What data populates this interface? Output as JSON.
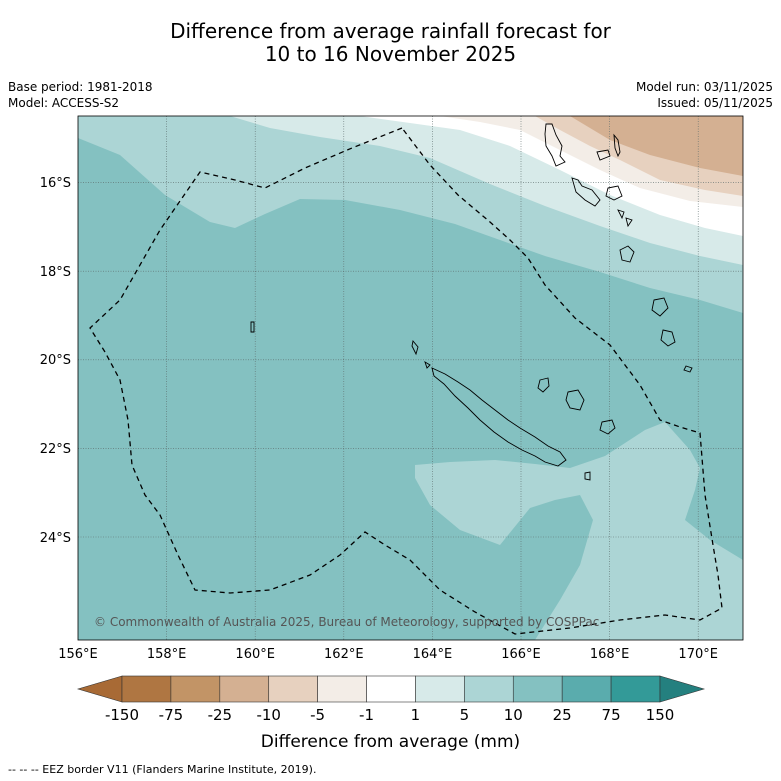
{
  "title": {
    "line1": "Difference from average rainfall forecast for",
    "line2": "10 to 16 November 2025"
  },
  "meta_left": {
    "base_period": "Base period: 1981-2018",
    "model": "Model: ACCESS-S2"
  },
  "meta_right": {
    "model_run": "Model run: 03/11/2025",
    "issued": "Issued: 05/11/2025"
  },
  "map": {
    "lat_labels": [
      "16°S",
      "18°S",
      "20°S",
      "22°S",
      "24°S"
    ],
    "lon_labels": [
      "156°E",
      "158°E",
      "160°E",
      "162°E",
      "164°E",
      "166°E",
      "168°E",
      "170°E"
    ],
    "copyright": "© Commonwealth of Australia 2025, Bureau of Meteorology, supported by COSPPac"
  },
  "colorbar": {
    "tick_labels": [
      "-150",
      "-75",
      "-25",
      "-10",
      "-5",
      "-1",
      "1",
      "5",
      "10",
      "25",
      "75",
      "150"
    ],
    "colors": [
      "#a86a35",
      "#af7642",
      "#c29466",
      "#d4b092",
      "#e7d1bf",
      "#f3ede7",
      "#ffffff",
      "#d7eae9",
      "#acd5d5",
      "#84c1c1",
      "#5aacad",
      "#339a98",
      "#24807f"
    ],
    "label": "Difference from average (mm)"
  },
  "footer": {
    "legend": "-- -- -- EEZ border V11 (Flanders Marine Institute, 2019)."
  }
}
